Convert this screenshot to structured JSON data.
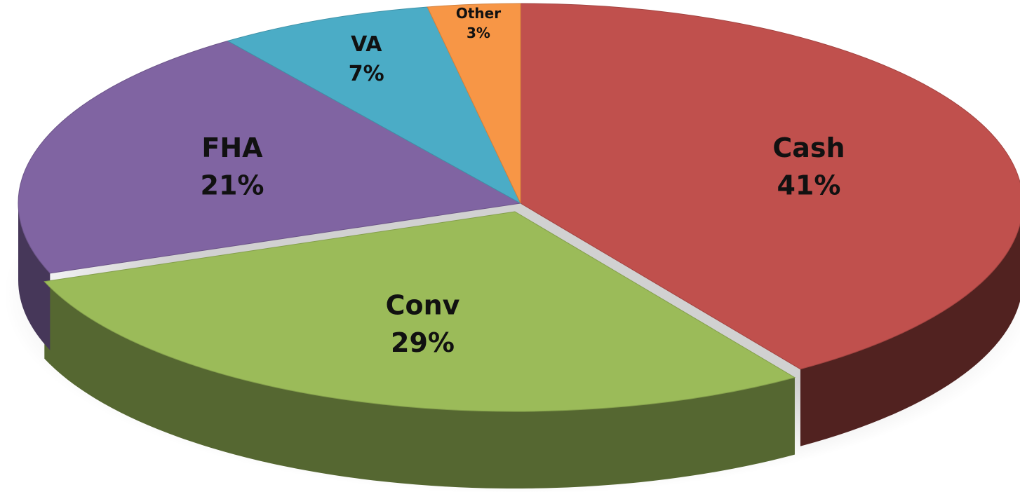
{
  "chart_data": {
    "type": "pie",
    "categories": [
      "Cash",
      "Conv",
      "FHA",
      "VA",
      "Other"
    ],
    "values": [
      41,
      29,
      21,
      7,
      3
    ],
    "value_labels": [
      "41%",
      "29%",
      "21%",
      "7%",
      "3%"
    ],
    "colors": [
      "#c0504d",
      "#9bbb59",
      "#8064a2",
      "#4bacc6",
      "#f79646"
    ]
  }
}
